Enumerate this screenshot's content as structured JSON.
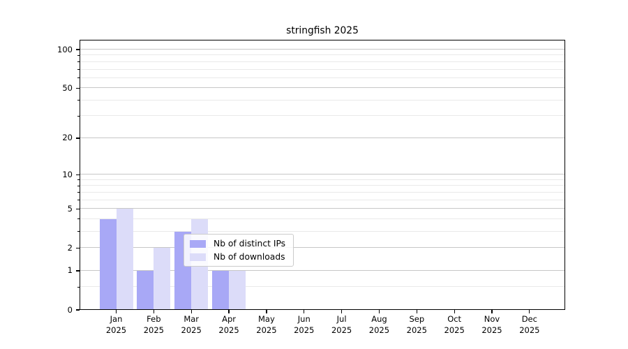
{
  "chart_data": {
    "type": "bar",
    "title": "stringfish 2025",
    "categories": [
      "Jan 2025",
      "Feb 2025",
      "Mar 2025",
      "Apr 2025",
      "May 2025",
      "Jun 2025",
      "Jul 2025",
      "Aug 2025",
      "Sep 2025",
      "Oct 2025",
      "Nov 2025",
      "Dec 2025"
    ],
    "series": [
      {
        "name": "Nb of distinct IPs",
        "color": "#a8a8f6",
        "values": [
          4,
          1,
          3,
          1,
          0,
          0,
          0,
          0,
          0,
          0,
          0,
          0
        ]
      },
      {
        "name": "Nb of downloads",
        "color": "#dcdcf9",
        "values": [
          5,
          2,
          4,
          1,
          0,
          0,
          0,
          0,
          0,
          0,
          0,
          0
        ]
      }
    ],
    "xlabel": "",
    "ylabel": "",
    "yscale": "log1p",
    "ylim": [
      0,
      114
    ],
    "y_major_ticks": [
      0,
      1,
      2,
      5,
      10,
      20,
      50,
      100
    ],
    "y_minor_ticks": [
      0.5,
      3,
      4,
      6,
      7,
      8,
      9,
      30,
      40,
      60,
      70,
      80,
      90
    ],
    "grid": true,
    "legend_position": "lower center",
    "colors": {
      "major_grid": "#c7c7c7",
      "minor_grid": "#e9e9e9",
      "axis": "#000000",
      "background": "#ffffff"
    }
  }
}
